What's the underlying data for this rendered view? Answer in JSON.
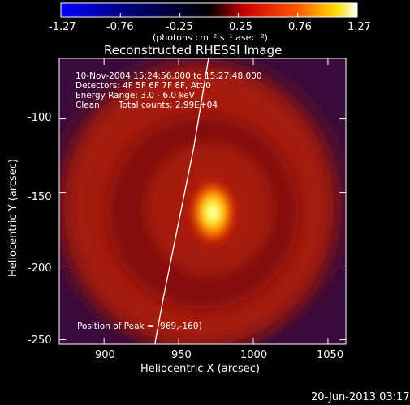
{
  "colorbar": {
    "ticks": [
      "-1.27",
      "-0.76",
      "-0.25",
      "0.25",
      "0.76",
      "1.27"
    ],
    "units": "(photons cm⁻² s⁻¹ asec⁻²)",
    "colors": [
      "#0000ff",
      "#000000",
      "#ff0000",
      "#ffff00",
      "#ffffff"
    ]
  },
  "title": "Reconstructed RHESSI Image",
  "info": {
    "time_range": "10-Nov-2004 15:24:56.000 to 15:27:48.000",
    "detectors": "Detectors: 4F 5F 6F 7F 8F, Att 0",
    "energy": "Energy Range: 3.0 - 6.0 keV",
    "clean": "Clean",
    "total_counts": "Total counts: 2.99E+04",
    "peak": "Position of Peak = [969,-160]"
  },
  "chart_data": {
    "type": "heatmap",
    "title": "Reconstructed RHESSI Image",
    "xlabel": "Heliocentric X (arcsec)",
    "ylabel": "Heliocentric Y (arcsec)",
    "xlim": [
      870,
      1062
    ],
    "ylim": [
      -253,
      -59
    ],
    "xticks": [
      900,
      950,
      1000,
      1050
    ],
    "yticks": [
      -100,
      -150,
      -200,
      -250
    ],
    "peak": {
      "x": 969,
      "y": -160
    },
    "value_range": [
      -1.27,
      1.27
    ],
    "limb_curve": [
      [
        934,
        -253
      ],
      [
        940,
        -220
      ],
      [
        950,
        -170
      ],
      [
        960,
        -120
      ],
      [
        970,
        -59
      ]
    ]
  },
  "footer": {
    "timestamp": "20-Jun-2013 03:17"
  },
  "style": {
    "foreground": "#ffffff",
    "background": "#000000"
  }
}
